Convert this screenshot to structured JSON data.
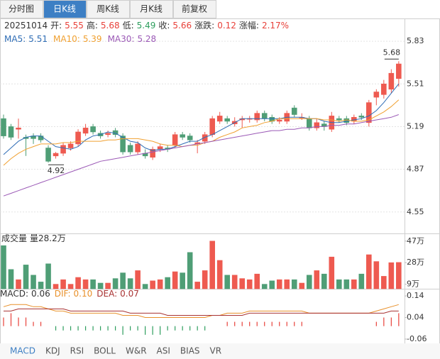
{
  "tabs": [
    "分时图",
    "日K线",
    "周K线",
    "月K线",
    "前复权"
  ],
  "active_tab": 1,
  "info": {
    "date": "20251014",
    "fields": [
      {
        "label": "开:",
        "value": 5.55,
        "color": "#e8413a"
      },
      {
        "label": "高:",
        "value": 5.68,
        "color": "#e8413a"
      },
      {
        "label": "低:",
        "value": 5.49,
        "color": "#2e9e5e"
      },
      {
        "label": "收:",
        "value": 5.66,
        "color": "#e8413a"
      },
      {
        "label": "涨跌:",
        "value": 0.12,
        "color": "#e8413a"
      },
      {
        "label": "涨幅:",
        "value": {
          "value": 2.17,
          "label": "2.17%"
        },
        "color": "#e8413a"
      }
    ]
  },
  "chart_data": [
    {
      "type": "candlestick",
      "up_color": "#ee5a50",
      "down_color": "#4f9e76",
      "ylim": [
        4.4,
        5.99
      ],
      "yticks": [
        5.83,
        5.51,
        5.19,
        4.87,
        4.55
      ],
      "grid": true,
      "open": [
        5.25,
        5.19,
        5.17,
        5.11,
        5.12,
        5.12,
        5.03,
        4.97,
        4.99,
        5.03,
        5.06,
        5.14,
        5.19,
        5.14,
        5.13,
        5.16,
        5.12,
        5.05,
        5.0,
        4.99,
        4.96,
        5.02,
        5.03,
        5.05,
        5.13,
        5.12,
        5.06,
        5.08,
        5.13,
        5.23,
        5.25,
        5.21,
        5.24,
        5.25,
        5.24,
        5.29,
        5.26,
        5.23,
        5.23,
        5.33,
        5.26,
        5.25,
        5.18,
        5.21,
        5.17,
        5.25,
        5.25,
        5.23,
        5.27,
        5.22,
        5.41,
        5.43,
        5.47,
        5.55
      ],
      "high": [
        5.28,
        5.21,
        5.25,
        5.13,
        5.14,
        5.14,
        5.05,
        5.0,
        5.07,
        5.08,
        5.17,
        5.21,
        5.21,
        5.16,
        5.16,
        5.18,
        5.14,
        5.07,
        5.08,
        5.02,
        5.04,
        5.06,
        5.05,
        5.15,
        5.15,
        5.14,
        5.09,
        5.15,
        5.27,
        5.3,
        5.27,
        5.26,
        5.27,
        5.27,
        5.31,
        5.31,
        5.28,
        5.26,
        5.31,
        5.35,
        5.29,
        5.27,
        5.25,
        5.23,
        5.3,
        5.27,
        5.27,
        5.28,
        5.29,
        5.39,
        5.47,
        5.54,
        5.62,
        5.68
      ],
      "low": [
        5.1,
        5.09,
        5.1,
        4.97,
        5.06,
        5.07,
        4.92,
        4.95,
        4.97,
        5.01,
        5.04,
        5.12,
        5.13,
        5.1,
        5.11,
        5.11,
        4.98,
        4.98,
        4.98,
        4.95,
        4.94,
        5.0,
        5.0,
        5.03,
        5.09,
        5.07,
        4.99,
        5.06,
        5.11,
        5.21,
        5.21,
        5.19,
        5.18,
        5.22,
        5.22,
        5.23,
        5.21,
        5.21,
        5.21,
        5.26,
        5.24,
        5.16,
        5.16,
        5.16,
        5.15,
        5.22,
        5.2,
        5.21,
        5.24,
        5.19,
        5.35,
        5.4,
        5.44,
        5.49
      ],
      "close": [
        5.12,
        5.11,
        5.18,
        5.1,
        5.1,
        5.09,
        4.93,
        4.99,
        5.05,
        5.06,
        5.15,
        5.18,
        5.15,
        5.12,
        5.14,
        5.13,
        5.0,
        5.0,
        5.06,
        4.97,
        5.02,
        5.04,
        5.02,
        5.13,
        5.11,
        5.09,
        5.07,
        5.13,
        5.25,
        5.27,
        5.23,
        5.23,
        5.25,
        5.25,
        5.29,
        5.25,
        5.23,
        5.24,
        5.29,
        5.28,
        5.26,
        5.18,
        5.22,
        5.19,
        5.27,
        5.24,
        5.22,
        5.26,
        5.26,
        5.37,
        5.45,
        5.51,
        5.59,
        5.66
      ],
      "series": [
        {
          "name": "MA5:",
          "color": "#2f6db5",
          "current": 5.51,
          "values": [
            4.98,
            5.03,
            5.08,
            5.11,
            5.12,
            5.12,
            5.08,
            5.04,
            5.03,
            5.02,
            5.04,
            5.09,
            5.12,
            5.13,
            5.15,
            5.14,
            5.11,
            5.08,
            5.07,
            5.03,
            5.01,
            5.02,
            5.02,
            5.04,
            5.06,
            5.08,
            5.08,
            5.11,
            5.13,
            5.16,
            5.19,
            5.22,
            5.25,
            5.25,
            5.25,
            5.25,
            5.25,
            5.25,
            5.26,
            5.26,
            5.26,
            5.25,
            5.25,
            5.23,
            5.22,
            5.22,
            5.23,
            5.24,
            5.25,
            5.27,
            5.31,
            5.37,
            5.44,
            5.51
          ]
        },
        {
          "name": "MA10:",
          "color": "#f0a030",
          "current": 5.39,
          "values": [
            4.9,
            4.95,
            4.99,
            5.02,
            5.04,
            5.06,
            5.06,
            5.06,
            5.07,
            5.07,
            5.08,
            5.08,
            5.08,
            5.08,
            5.09,
            5.09,
            5.1,
            5.1,
            5.1,
            5.09,
            5.08,
            5.06,
            5.05,
            5.05,
            5.04,
            5.05,
            5.05,
            5.07,
            5.08,
            5.11,
            5.13,
            5.15,
            5.18,
            5.19,
            5.2,
            5.22,
            5.23,
            5.25,
            5.25,
            5.25,
            5.25,
            5.25,
            5.25,
            5.24,
            5.24,
            5.23,
            5.24,
            5.23,
            5.23,
            5.24,
            5.27,
            5.3,
            5.34,
            5.39
          ]
        },
        {
          "name": "MA30:",
          "color": "#9b59b6",
          "current": 5.28,
          "values": [
            4.67,
            4.69,
            4.71,
            4.73,
            4.75,
            4.77,
            4.79,
            4.81,
            4.83,
            4.85,
            4.87,
            4.89,
            4.91,
            4.93,
            4.94,
            4.95,
            4.96,
            4.97,
            4.98,
            4.99,
            5.0,
            5.01,
            5.02,
            5.03,
            5.04,
            5.05,
            5.06,
            5.07,
            5.08,
            5.09,
            5.1,
            5.11,
            5.12,
            5.13,
            5.14,
            5.15,
            5.16,
            5.16,
            5.17,
            5.17,
            5.18,
            5.18,
            5.19,
            5.19,
            5.2,
            5.2,
            5.21,
            5.21,
            5.22,
            5.23,
            5.24,
            5.25,
            5.26,
            5.28
          ]
        }
      ]
    },
    {
      "type": "bar",
      "title": "成交量",
      "legend": {
        "label": "量",
        "value": 28.2,
        "unit": "万"
      },
      "up_color": "#ee5a50",
      "down_color": "#4f9e76",
      "ylim": [
        5,
        50
      ],
      "yticks": [
        {
          "value": 47,
          "label": "47万"
        },
        {
          "value": 28,
          "label": "28万"
        },
        {
          "value": 9,
          "label": "9万"
        }
      ],
      "values": [
        43,
        22,
        13,
        26,
        17,
        11,
        27,
        9,
        13,
        9,
        15,
        13,
        13,
        10,
        10,
        14,
        19,
        14,
        21,
        9,
        12,
        13,
        15,
        20,
        19,
        37,
        11,
        21,
        47,
        30,
        17,
        17,
        14,
        13,
        18,
        9,
        12,
        13,
        13,
        13,
        10,
        17,
        21,
        18,
        33,
        13,
        13,
        13,
        18,
        35,
        29,
        16,
        28,
        28.2
      ]
    },
    {
      "type": "macd",
      "up_color": "#e8413a",
      "down_color": "#2e9e5e",
      "ylim": [
        -0.08,
        0.17
      ],
      "yticks": [
        0.14,
        0.04,
        -0.06
      ],
      "series": [
        {
          "name": "MACD:",
          "style": "bar",
          "color": "#333333",
          "current": 0.06,
          "values": [
            0.04,
            0.06,
            0.04,
            0.04,
            0.02,
            0.02,
            0,
            -0.02,
            -0.02,
            -0.02,
            -0.02,
            -0.02,
            -0.02,
            -0.02,
            -0.02,
            -0.02,
            -0.04,
            -0.02,
            -0.02,
            -0.04,
            -0.04,
            -0.04,
            -0.02,
            -0.02,
            -0.02,
            -0.02,
            -0.02,
            -0.02,
            0,
            0,
            0.02,
            0.02,
            0.02,
            0.02,
            0.02,
            0.02,
            0.02,
            0.02,
            0.02,
            0.02,
            0.02,
            0,
            0,
            0,
            0,
            0,
            0,
            0,
            0,
            0,
            0.02,
            0.04,
            0.04,
            0.06
          ]
        },
        {
          "name": "DIF:",
          "style": "line",
          "color": "#e8902a",
          "current": {
            "value": 0.1,
            "label": "0.10"
          },
          "values": [
            0.09,
            0.1,
            0.1,
            0.1,
            0.09,
            0.09,
            0.08,
            0.07,
            0.07,
            0.06,
            0.06,
            0.06,
            0.06,
            0.06,
            0.06,
            0.06,
            0.05,
            0.05,
            0.05,
            0.04,
            0.04,
            0.04,
            0.04,
            0.04,
            0.04,
            0.04,
            0.04,
            0.04,
            0.05,
            0.05,
            0.06,
            0.06,
            0.06,
            0.07,
            0.07,
            0.07,
            0.07,
            0.07,
            0.07,
            0.07,
            0.07,
            0.06,
            0.06,
            0.06,
            0.06,
            0.06,
            0.06,
            0.06,
            0.06,
            0.06,
            0.07,
            0.08,
            0.09,
            0.1
          ]
        },
        {
          "name": "DEA:",
          "style": "line",
          "color": "#a83232",
          "current": 0.07,
          "values": [
            0.07,
            0.07,
            0.08,
            0.08,
            0.08,
            0.08,
            0.08,
            0.08,
            0.08,
            0.07,
            0.07,
            0.07,
            0.07,
            0.07,
            0.07,
            0.07,
            0.07,
            0.06,
            0.06,
            0.06,
            0.06,
            0.06,
            0.05,
            0.05,
            0.05,
            0.05,
            0.05,
            0.05,
            0.05,
            0.05,
            0.05,
            0.05,
            0.05,
            0.06,
            0.06,
            0.06,
            0.06,
            0.06,
            0.06,
            0.06,
            0.06,
            0.06,
            0.06,
            0.06,
            0.06,
            0.06,
            0.06,
            0.06,
            0.06,
            0.06,
            0.06,
            0.06,
            0.07,
            0.07
          ]
        }
      ]
    }
  ],
  "indicator_tabs": [
    "MACD",
    "KDJ",
    "RSI",
    "BOLL",
    "W&R",
    "ASI",
    "BIAS",
    "VR"
  ],
  "active_indicator": 0
}
